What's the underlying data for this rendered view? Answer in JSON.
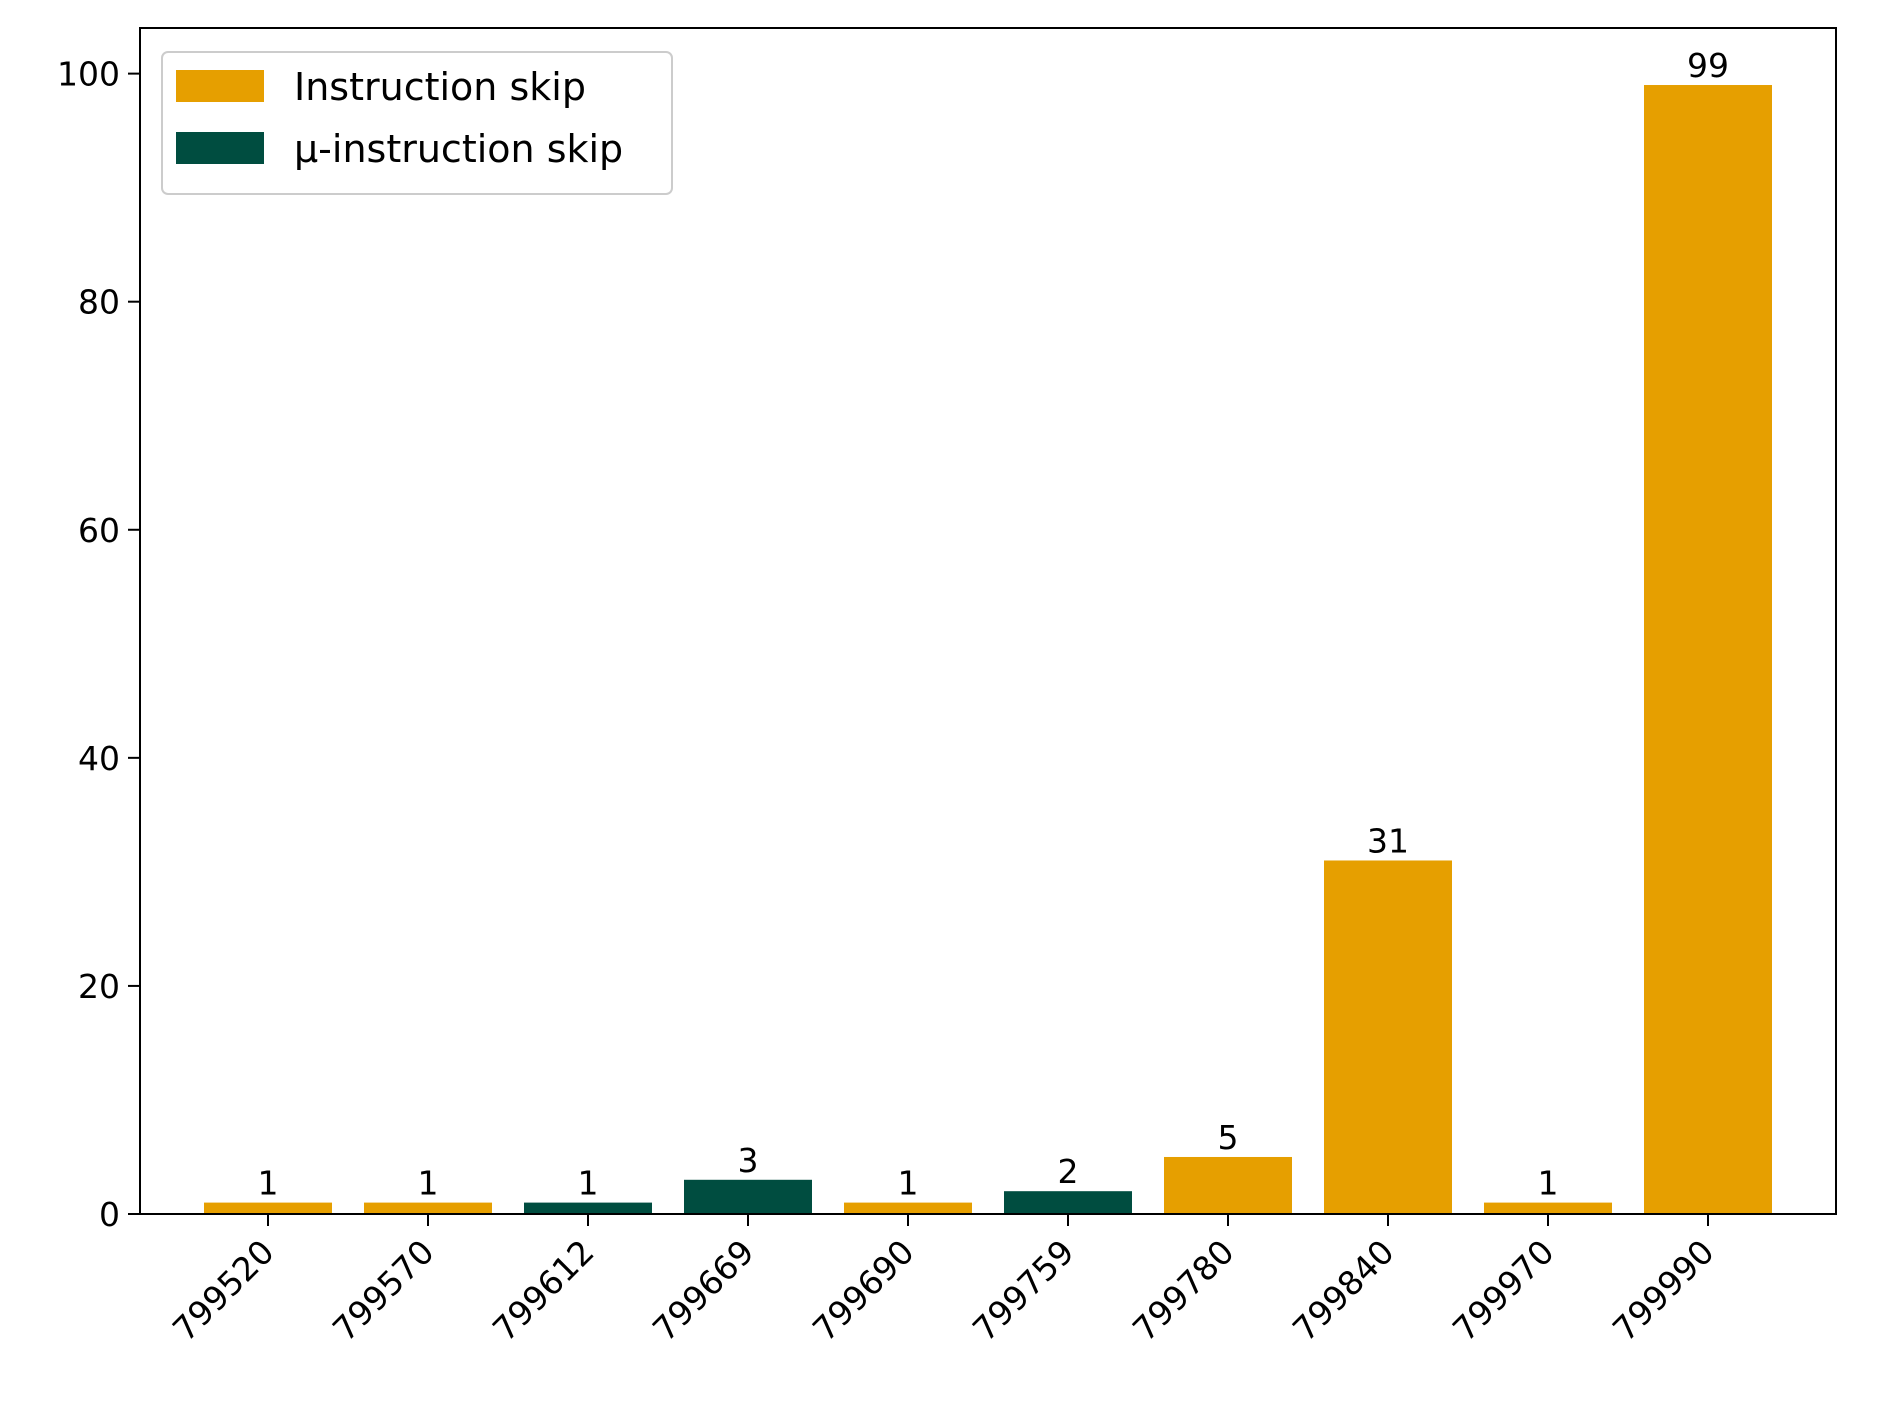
{
  "chart_data": {
    "type": "bar",
    "title": "",
    "xlabel": "",
    "ylabel": "",
    "categories": [
      "799520",
      "799570",
      "799612",
      "799669",
      "799690",
      "799759",
      "799780",
      "799840",
      "799970",
      "799990"
    ],
    "values": [
      1,
      1,
      1,
      3,
      1,
      2,
      5,
      31,
      1,
      99
    ],
    "bar_series": [
      "Instruction skip",
      "Instruction skip",
      "μ-instruction skip",
      "μ-instruction skip",
      "Instruction skip",
      "μ-instruction skip",
      "Instruction skip",
      "Instruction skip",
      "Instruction skip",
      "Instruction skip"
    ],
    "series": [
      {
        "name": "Instruction skip",
        "color": "#E69F00"
      },
      {
        "name": "μ-instruction skip",
        "color": "#004D40"
      }
    ],
    "ylim": [
      0,
      104
    ],
    "yticks": [
      0,
      20,
      40,
      60,
      80,
      100
    ],
    "grid": false,
    "legend_position": "top-left"
  }
}
